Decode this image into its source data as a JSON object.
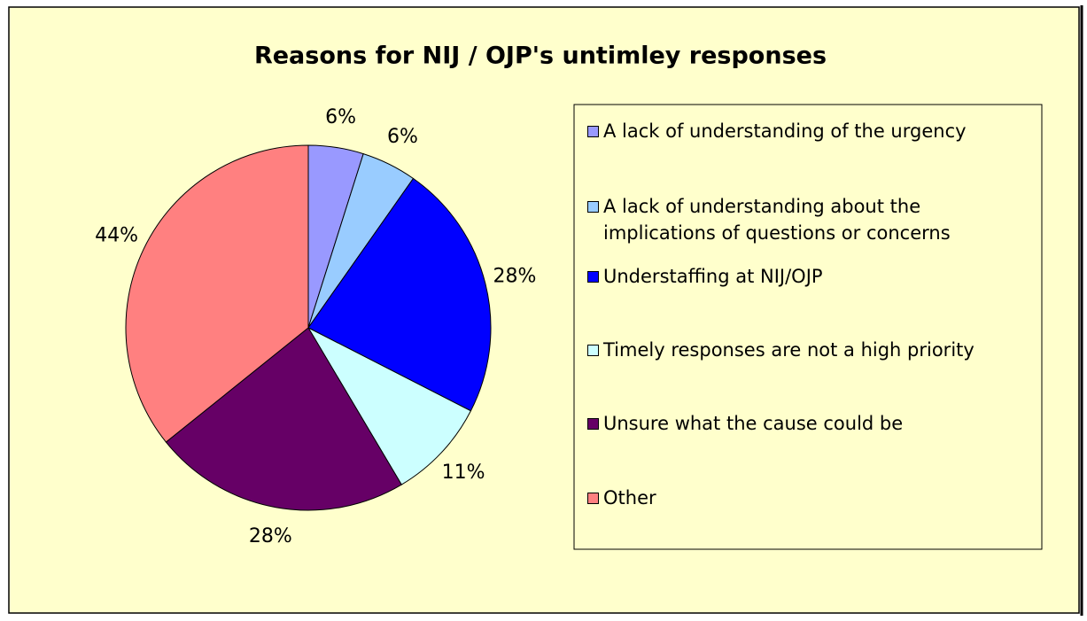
{
  "chart_data": {
    "type": "pie",
    "title": "Reasons for NIJ / OJP's untimley responses",
    "categories": [
      "A lack of understanding of the urgency",
      "A lack of understanding about the implications of questions or concerns",
      "Understaffing at NIJ/OJP",
      "Timely responses are not a high priority",
      "Unsure what the cause could be",
      "Other"
    ],
    "values": [
      6,
      6,
      28,
      11,
      28,
      44
    ],
    "value_labels": [
      "6%",
      "6%",
      "28%",
      "11%",
      "28%",
      "44%"
    ],
    "colors": [
      "#9999ff",
      "#99ccff",
      "#0000ff",
      "#ccffff",
      "#660066",
      "#ff8080"
    ],
    "legend": "right"
  }
}
